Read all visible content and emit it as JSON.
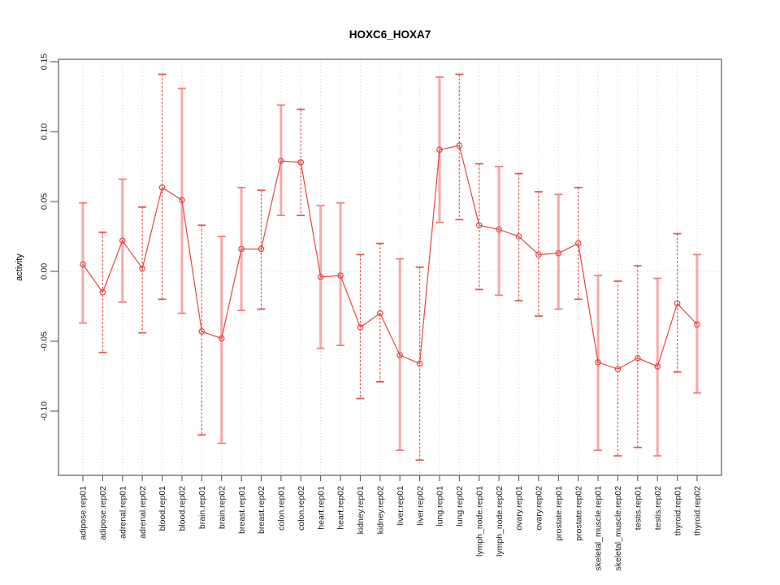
{
  "chart_data": {
    "type": "line",
    "title": "HOXC6_HOXA7",
    "ylabel": "activity",
    "xlabel": "",
    "legend": "none",
    "grid": "dotted vertical line per category; dotted horizontal line at y=0",
    "ylim": [
      -0.146,
      0.152
    ],
    "yticks": [
      {
        "value": -0.1,
        "label": "-0.10"
      },
      {
        "value": -0.05,
        "label": "-0.05"
      },
      {
        "value": 0.0,
        "label": "0.00"
      },
      {
        "value": 0.05,
        "label": "0.05"
      },
      {
        "value": 0.1,
        "label": "0.10"
      },
      {
        "value": 0.15,
        "label": "0.15"
      }
    ],
    "categories": [
      "adipose.rep01",
      "adipose.rep02",
      "adrenal.rep01",
      "adrenal.rep02",
      "blood.rep01",
      "blood.rep02",
      "brain.rep01",
      "brain.rep02",
      "breast.rep01",
      "breast.rep02",
      "colon.rep01",
      "colon.rep02",
      "heart.rep01",
      "heart.rep02",
      "kidney.rep01",
      "kidney.rep02",
      "liver.rep01",
      "liver.rep02",
      "lung.rep01",
      "lung.rep02",
      "lymph_node.rep01",
      "lymph_node.rep02",
      "ovary.rep01",
      "ovary.rep02",
      "prostate.rep01",
      "prostate.rep02",
      "skeletal_muscle.rep01",
      "skeletal_muscle.rep02",
      "testis.rep01",
      "testis.rep02",
      "thyroid.rep01",
      "thyroid.rep02"
    ],
    "points": [
      {
        "category": "adipose.rep01",
        "value": 0.005,
        "lo": -0.037,
        "hi": 0.049,
        "bar_style": "solid"
      },
      {
        "category": "adipose.rep02",
        "value": -0.015,
        "lo": -0.058,
        "hi": 0.028,
        "bar_style": "dashed"
      },
      {
        "category": "adrenal.rep01",
        "value": 0.022,
        "lo": -0.022,
        "hi": 0.066,
        "bar_style": "solid"
      },
      {
        "category": "adrenal.rep02",
        "value": 0.002,
        "lo": -0.044,
        "hi": 0.046,
        "bar_style": "dashed"
      },
      {
        "category": "blood.rep01",
        "value": 0.06,
        "lo": -0.02,
        "hi": 0.141,
        "bar_style": "dashed"
      },
      {
        "category": "blood.rep02",
        "value": 0.051,
        "lo": -0.03,
        "hi": 0.131,
        "bar_style": "solid"
      },
      {
        "category": "brain.rep01",
        "value": -0.043,
        "lo": -0.117,
        "hi": 0.033,
        "bar_style": "dashed"
      },
      {
        "category": "brain.rep02",
        "value": -0.048,
        "lo": -0.123,
        "hi": 0.025,
        "bar_style": "solid"
      },
      {
        "category": "breast.rep01",
        "value": 0.016,
        "lo": -0.028,
        "hi": 0.06,
        "bar_style": "solid"
      },
      {
        "category": "breast.rep02",
        "value": 0.016,
        "lo": -0.027,
        "hi": 0.058,
        "bar_style": "dashed"
      },
      {
        "category": "colon.rep01",
        "value": 0.079,
        "lo": 0.04,
        "hi": 0.119,
        "bar_style": "solid"
      },
      {
        "category": "colon.rep02",
        "value": 0.078,
        "lo": 0.04,
        "hi": 0.116,
        "bar_style": "dashed"
      },
      {
        "category": "heart.rep01",
        "value": -0.004,
        "lo": -0.055,
        "hi": 0.047,
        "bar_style": "solid"
      },
      {
        "category": "heart.rep02",
        "value": -0.003,
        "lo": -0.053,
        "hi": 0.049,
        "bar_style": "solid"
      },
      {
        "category": "kidney.rep01",
        "value": -0.04,
        "lo": -0.091,
        "hi": 0.012,
        "bar_style": "dashed"
      },
      {
        "category": "kidney.rep02",
        "value": -0.03,
        "lo": -0.079,
        "hi": 0.02,
        "bar_style": "dashed"
      },
      {
        "category": "liver.rep01",
        "value": -0.06,
        "lo": -0.128,
        "hi": 0.009,
        "bar_style": "solid"
      },
      {
        "category": "liver.rep02",
        "value": -0.066,
        "lo": -0.135,
        "hi": 0.003,
        "bar_style": "dashed"
      },
      {
        "category": "lung.rep01",
        "value": 0.087,
        "lo": 0.035,
        "hi": 0.139,
        "bar_style": "solid"
      },
      {
        "category": "lung.rep02",
        "value": 0.09,
        "lo": 0.037,
        "hi": 0.141,
        "bar_style": "dashed"
      },
      {
        "category": "lymph_node.rep01",
        "value": 0.033,
        "lo": -0.013,
        "hi": 0.077,
        "bar_style": "dashed"
      },
      {
        "category": "lymph_node.rep02",
        "value": 0.03,
        "lo": -0.017,
        "hi": 0.075,
        "bar_style": "solid"
      },
      {
        "category": "ovary.rep01",
        "value": 0.025,
        "lo": -0.021,
        "hi": 0.07,
        "bar_style": "dashed"
      },
      {
        "category": "ovary.rep02",
        "value": 0.012,
        "lo": -0.032,
        "hi": 0.057,
        "bar_style": "dashed"
      },
      {
        "category": "prostate.rep01",
        "value": 0.013,
        "lo": -0.027,
        "hi": 0.055,
        "bar_style": "solid"
      },
      {
        "category": "prostate.rep02",
        "value": 0.02,
        "lo": -0.02,
        "hi": 0.06,
        "bar_style": "dashed"
      },
      {
        "category": "skeletal_muscle.rep01",
        "value": -0.065,
        "lo": -0.128,
        "hi": -0.003,
        "bar_style": "solid"
      },
      {
        "category": "skeletal_muscle.rep02",
        "value": -0.07,
        "lo": -0.132,
        "hi": -0.007,
        "bar_style": "dashed"
      },
      {
        "category": "testis.rep01",
        "value": -0.062,
        "lo": -0.126,
        "hi": 0.004,
        "bar_style": "dashed"
      },
      {
        "category": "testis.rep02",
        "value": -0.068,
        "lo": -0.132,
        "hi": -0.005,
        "bar_style": "solid"
      },
      {
        "category": "thyroid.rep01",
        "value": -0.023,
        "lo": -0.072,
        "hi": 0.027,
        "bar_style": "dashed"
      },
      {
        "category": "thyroid.rep02",
        "value": -0.038,
        "lo": -0.087,
        "hi": 0.012,
        "bar_style": "solid"
      }
    ],
    "colors": {
      "series_red": "#e8463f",
      "error_bar_solid": "#f5a9a9",
      "error_bar_solid_cap": "#ef7b7b",
      "error_bar_dashed": "#e85252",
      "gridline": "#d4d4d4",
      "plot_border": "#5a5a5a",
      "background": "#ffffff"
    }
  }
}
